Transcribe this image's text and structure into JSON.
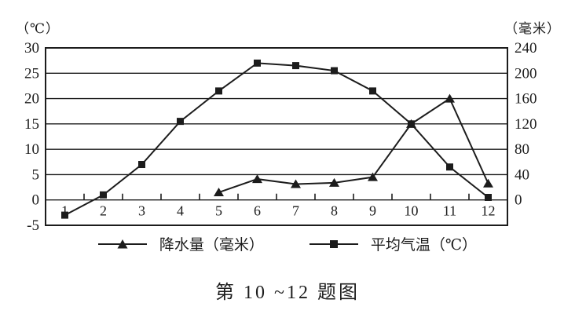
{
  "colors": {
    "ink": "#1c1c1c",
    "background": "#ffffff"
  },
  "chart_data": {
    "type": "line",
    "caption": "第 10 ~12 题图",
    "x": [
      1,
      2,
      3,
      4,
      5,
      6,
      7,
      8,
      9,
      10,
      11,
      12
    ],
    "x_labels": [
      "1",
      "2",
      "3",
      "4",
      "5",
      "6",
      "7",
      "8",
      "9",
      "10",
      "11",
      "12"
    ],
    "left_axis": {
      "unit_label": "（℃）",
      "ticks": [
        30,
        25,
        20,
        15,
        10,
        5,
        0,
        -5
      ],
      "range": [
        -5,
        30
      ]
    },
    "right_axis": {
      "unit_label": "（毫米）",
      "ticks": [
        240,
        200,
        160,
        120,
        80,
        40,
        0
      ],
      "range": [
        0,
        240
      ]
    },
    "grid": true,
    "legend_position": "bottom",
    "series": [
      {
        "name": "降水量（毫米）",
        "axis": "right",
        "marker": "triangle",
        "values": [
          null,
          null,
          null,
          null,
          12,
          33,
          25,
          27,
          36,
          120,
          160,
          26
        ]
      },
      {
        "name": "平均气温（℃）",
        "axis": "left",
        "marker": "square",
        "values": [
          -3,
          1,
          7,
          15.5,
          21.5,
          27,
          26.5,
          25.5,
          21.5,
          15,
          6.5,
          0.5
        ]
      }
    ]
  }
}
